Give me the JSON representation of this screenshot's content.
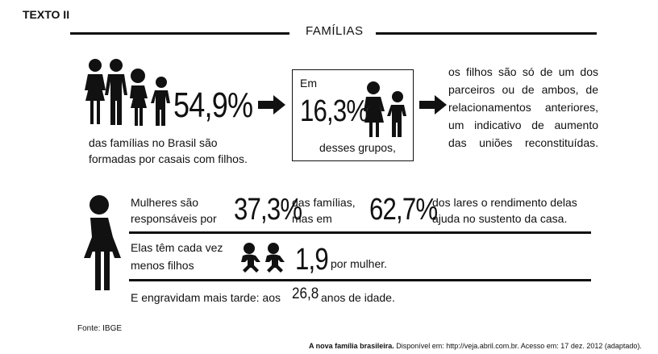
{
  "heading": "TEXTO II",
  "title": "FAMÍLIAS",
  "block1": {
    "value": "54,9%",
    "caption_line1": "das famílias no Brasil são",
    "caption_line2": "formadas por casais com filhos."
  },
  "block2": {
    "prefix": "Em",
    "value": "16,3%",
    "suffix": "desses grupos,"
  },
  "block3": {
    "lines": [
      "os filhos são só de um dos",
      "parceiros ou de ambos, de",
      "relacionamentos anteriores,",
      "um indicativo de aumento",
      "das uniões reconstituídas."
    ]
  },
  "women": {
    "row1_text_a": "Mulheres são",
    "row1_text_b": "responsáveis por",
    "row1_value1": "37,3%",
    "row1_mid_a": "das famílias,",
    "row1_mid_b": "mas em",
    "row1_value2": "62,7%",
    "row1_end_a": "dos lares o rendimento delas",
    "row1_end_b": "ajuda no sustento da casa.",
    "row2_text_a": "Elas têm cada vez",
    "row2_text_b": "menos filhos",
    "row2_value": "1,9",
    "row2_suffix": "por mulher.",
    "row3_text_a": "E engravidam mais tarde: aos",
    "row3_value": "26,8",
    "row3_text_b": "anos de idade."
  },
  "source": "Fonte: IBGE",
  "citation": {
    "bold": "A nova família brasileira.",
    "rest": " Disponível em: http://veja.abril.com.br. Acesso em: 17 dez. 2012 (adaptado)."
  },
  "icons": [
    "family-icon",
    "parent-child-icon",
    "arrow-right-icon",
    "woman-icon",
    "babies-icon"
  ]
}
